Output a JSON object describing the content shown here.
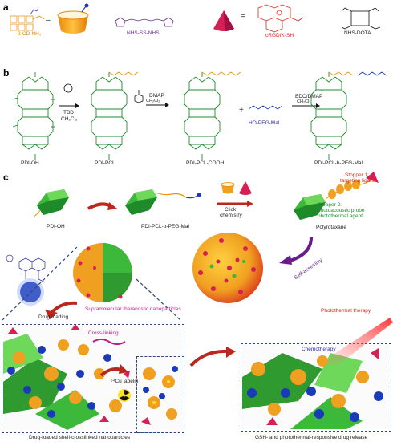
{
  "panels": {
    "a": {
      "letter": "a",
      "labels": {
        "bcd": "β-CD-NH₂",
        "nhs_ss": "NHS-SS-NHS",
        "crgdk": "cRGDfK-SH",
        "nhs_dota": "NHS-DOTA"
      }
    },
    "b": {
      "letter": "b",
      "compounds": {
        "pdi_oh": "PDI-OH",
        "pdi_pcl": "PDI-PCL",
        "pdi_pcl_cooh": "PDI-PCL-COOH",
        "pdi_pcl_b_peg": "PDI-PCL-b-PEG-Mal"
      },
      "reagents": {
        "step1_top": "TBD",
        "step1_bottom": "CH₂Cl₂",
        "step2_top": "DMAP",
        "step2_bottom": "CH₂Cl₂",
        "peg": "HO-PEG-Mal",
        "step3_top": "EDC/DMAP",
        "step3_bottom": "CH₂Cl₂"
      }
    },
    "c": {
      "letter": "c",
      "labels": {
        "pdi_oh": "PDI-OH",
        "pdi_pcl_peg": "PDI-PCL-b-PEG-Mal",
        "click": "Click",
        "chemistry": "chemistry",
        "stopper1_a": "Stopper 1:",
        "stopper1_b": "targeting ligand",
        "stopper2_a": "Stopper 2:",
        "stopper2_b": "photoacoustic probe",
        "stopper2_c": "photothermal agent",
        "polyrotaxane": "Polyrotaxane",
        "self_assembly": "Self-assembly",
        "supra": "Supramolecular theranostic nanoparticles",
        "drug_loading": "Drug-loading",
        "crosslinking": "Cross-linking",
        "cu_labeling": "⁶⁴Cu labeling",
        "photothermal": "Photothermal therapy",
        "chemotherapy": "Chemotherapy",
        "drug_loaded": "Drug-loaded shell-crosslinked nanoparticles",
        "gsh": "GSH- and photothermal-responsive drug release"
      }
    }
  }
}
